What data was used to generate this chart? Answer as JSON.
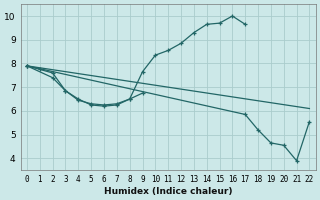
{
  "xlabel": "Humidex (Indice chaleur)",
  "xlim": [
    -0.5,
    22.5
  ],
  "ylim": [
    3.5,
    10.5
  ],
  "xticks": [
    0,
    1,
    2,
    3,
    4,
    5,
    6,
    7,
    8,
    9,
    10,
    11,
    12,
    13,
    14,
    15,
    16,
    17,
    18,
    19,
    20,
    21,
    22
  ],
  "yticks": [
    4,
    5,
    6,
    7,
    8,
    9,
    10
  ],
  "background_color": "#cce8e8",
  "grid_color": "#aacccc",
  "line_color": "#226666",
  "series": [
    {
      "x": [
        0,
        1,
        2,
        3,
        4,
        5,
        6,
        7,
        8,
        9,
        10,
        11,
        12,
        13,
        14,
        15,
        16,
        17
      ],
      "y": [
        7.9,
        7.75,
        7.6,
        6.85,
        6.45,
        6.3,
        6.25,
        6.3,
        6.5,
        7.65,
        8.35,
        8.55,
        8.85,
        9.3,
        9.65,
        9.7,
        10.0,
        9.65
      ],
      "marker": true
    },
    {
      "x": [
        0,
        2,
        3,
        4,
        5,
        6,
        7,
        8,
        9
      ],
      "y": [
        7.9,
        7.4,
        6.85,
        6.5,
        6.25,
        6.2,
        6.25,
        6.5,
        6.75
      ],
      "marker": true
    },
    {
      "x": [
        0,
        22
      ],
      "y": [
        7.9,
        6.1
      ],
      "marker": false
    },
    {
      "x": [
        0,
        17,
        18,
        19,
        20,
        21,
        22
      ],
      "y": [
        7.9,
        5.85,
        5.2,
        4.65,
        4.55,
        3.9,
        5.55
      ],
      "marker": true
    }
  ]
}
